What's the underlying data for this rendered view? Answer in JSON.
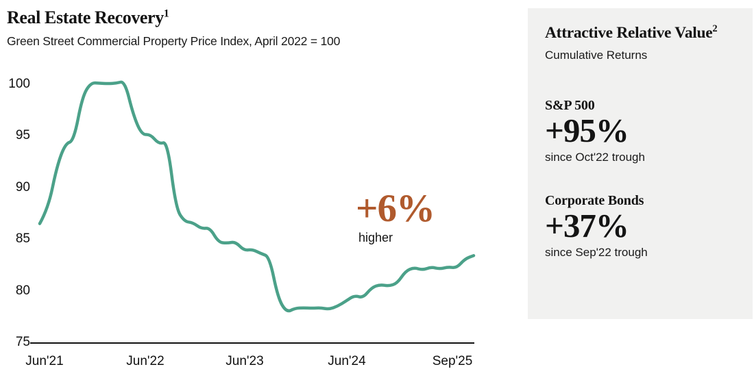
{
  "chart_data": {
    "type": "line",
    "title": "Real Estate Recovery",
    "title_sup": "1",
    "subtitle": "Green Street Commercial Property Price Index, April 2022 = 100",
    "series_name": "Green Street Commercial Property Price Index",
    "x": [
      "Jun'21",
      "Jul'21",
      "Aug'21",
      "Sep'21",
      "Oct'21",
      "Nov'21",
      "Dec'21",
      "Jan'22",
      "Feb'22",
      "Mar'22",
      "Apr'22",
      "May'22",
      "Jun'22",
      "Jul'22",
      "Aug'22",
      "Sep'22",
      "Oct'22",
      "Nov'22",
      "Dec'22",
      "Jan'23",
      "Feb'23",
      "Mar'23",
      "Apr'23",
      "May'23",
      "Jun'23",
      "Jul'23",
      "Aug'23",
      "Sep'23",
      "Oct'23",
      "Nov'23",
      "Dec'23",
      "Jan'24",
      "Feb'24",
      "Mar'24",
      "Apr'24",
      "May'24",
      "Jun'24",
      "Jul'24",
      "Aug'24",
      "Sep'24",
      "Oct'24",
      "Nov'24",
      "Dec'24",
      "Jan'25",
      "Feb'25",
      "Mar'25",
      "Apr'25",
      "May'25",
      "Jun'25",
      "Jul'25",
      "Aug'25",
      "Sep'25"
    ],
    "values": [
      86.5,
      88.0,
      92.0,
      94.25,
      94.5,
      98.8,
      100.15,
      100.1,
      100.05,
      100.1,
      100.3,
      97.0,
      95.1,
      95.15,
      94.2,
      94.45,
      88.0,
      86.7,
      86.6,
      86.0,
      86.1,
      84.7,
      84.6,
      84.75,
      83.9,
      84.0,
      83.6,
      83.3,
      79.3,
      77.9,
      78.3,
      78.35,
      78.3,
      78.35,
      78.2,
      78.5,
      79.0,
      79.55,
      79.3,
      80.3,
      80.6,
      80.45,
      80.7,
      81.9,
      82.25,
      82.0,
      82.3,
      82.1,
      82.3,
      82.2,
      83.1,
      83.4
    ],
    "ylim": [
      75,
      101.5
    ],
    "yticks": [
      75,
      80,
      85,
      90,
      95,
      100
    ],
    "xtick_labels": [
      "Jun'21",
      "Jun'22",
      "Jun'23",
      "Jun'24",
      "Sep'25"
    ],
    "xtick_month_index": [
      0,
      12,
      24,
      36,
      51
    ],
    "grid": false,
    "legend": "none",
    "line_color": "#4ba189",
    "annotation": {
      "value": "+6%",
      "label": "higher",
      "color": "#b05a2d"
    }
  },
  "sidebar": {
    "title": "Attractive Relative Value",
    "title_sup": "2",
    "subtitle": "Cumulative Returns",
    "background": "#f1f1f0",
    "stats": [
      {
        "name": "S&P 500",
        "value": "+95%",
        "caption": "since Oct'22 trough"
      },
      {
        "name": "Corporate Bonds",
        "value": "+37%",
        "caption": "since Sep'22 trough"
      }
    ]
  }
}
